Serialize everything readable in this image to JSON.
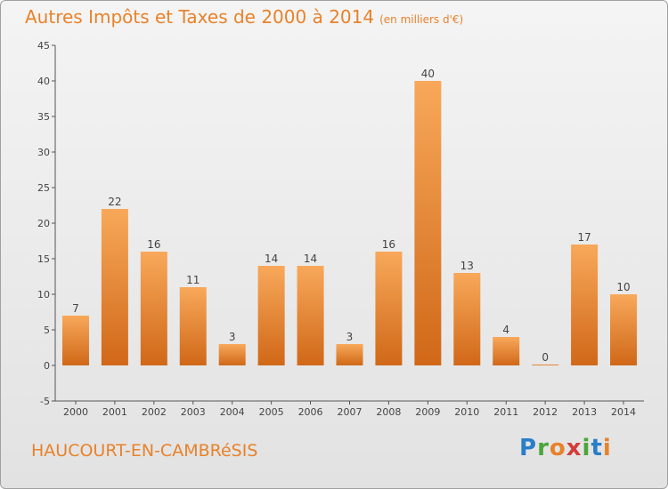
{
  "header": {
    "title": "Autres Impôts et Taxes de 2000 à 2014",
    "subtitle": "(en milliers d'€)"
  },
  "footer": {
    "commune": "HAUCOURT-EN-CAMBRéSIS",
    "logo_letters": [
      "P",
      "r",
      "o",
      "x",
      "i",
      "t",
      "i"
    ],
    "logo_colors": [
      "#2a7ec8",
      "#4aa63a",
      "#e8822a",
      "#d43c3c",
      "#4aa63a",
      "#2a7ec8",
      "#e8822a"
    ]
  },
  "colors": {
    "accent": "#e8822a",
    "bar_light": "#f8a85a",
    "bar_dark": "#d06818"
  },
  "chart_data": {
    "type": "bar",
    "categories": [
      "2000",
      "2001",
      "2002",
      "2003",
      "2004",
      "2005",
      "2006",
      "2007",
      "2008",
      "2009",
      "2010",
      "2011",
      "2012",
      "2013",
      "2014"
    ],
    "values": [
      7,
      22,
      16,
      11,
      3,
      14,
      14,
      3,
      16,
      40,
      13,
      4,
      0,
      17,
      10
    ],
    "title": "Autres Impôts et Taxes de 2000 à 2014",
    "ylim": [
      -5,
      45
    ],
    "yticks": [
      -5,
      0,
      5,
      10,
      15,
      20,
      25,
      30,
      35,
      40,
      45
    ],
    "grid": false
  }
}
